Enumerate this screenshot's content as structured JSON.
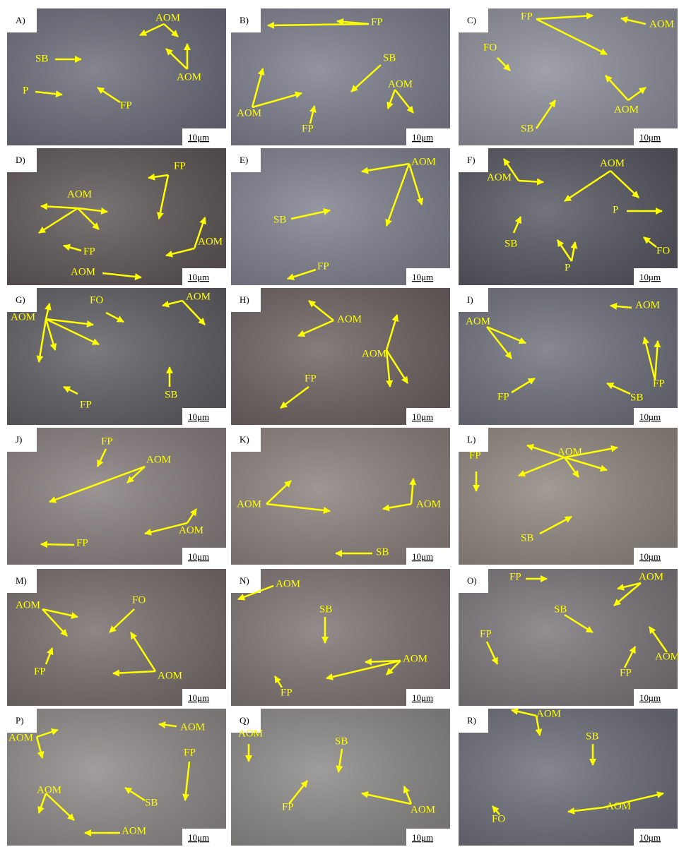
{
  "panels": [
    {
      "label": "A)",
      "annotations": [
        "AOM",
        "SB",
        "P",
        "FP",
        "AOM"
      ],
      "scale": "10μm"
    },
    {
      "label": "B)",
      "annotations": [
        "FP",
        "SB",
        "AOM",
        "FP",
        "AOM"
      ],
      "scale": "10μm"
    },
    {
      "label": "C)",
      "annotations": [
        "FP",
        "AOM",
        "FO",
        "AOM",
        "SB"
      ],
      "scale": "10μm"
    },
    {
      "label": "D)",
      "annotations": [
        "FP",
        "AOM",
        "FP",
        "AOM",
        "AOM"
      ],
      "scale": "10μm"
    },
    {
      "label": "E)",
      "annotations": [
        "AOM",
        "SB",
        "FP"
      ],
      "scale": "10μm"
    },
    {
      "label": "F)",
      "annotations": [
        "AOM",
        "AOM",
        "P",
        "SB",
        "P",
        "FO"
      ],
      "scale": "10μm"
    },
    {
      "label": "G)",
      "annotations": [
        "AOM",
        "FO",
        "AOM",
        "SB",
        "FP"
      ],
      "scale": "10μm"
    },
    {
      "label": "H)",
      "annotations": [
        "AOM",
        "AOM",
        "FP"
      ],
      "scale": "10μm"
    },
    {
      "label": "I)",
      "annotations": [
        "AOM",
        "AOM",
        "FP",
        "SB",
        "FP"
      ],
      "scale": "10μm"
    },
    {
      "label": "J)",
      "annotations": [
        "FP",
        "AOM",
        "AOM",
        "FP"
      ],
      "scale": "10μm"
    },
    {
      "label": "K)",
      "annotations": [
        "AOM",
        "AOM",
        "SB"
      ],
      "scale": "10μm"
    },
    {
      "label": "L)",
      "annotations": [
        "FP",
        "AOM",
        "SB"
      ],
      "scale": "10μm"
    },
    {
      "label": "M)",
      "annotations": [
        "AOM",
        "FO",
        "FP",
        "AOM"
      ],
      "scale": "10μm"
    },
    {
      "label": "N)",
      "annotations": [
        "AOM",
        "SB",
        "AOM",
        "FP"
      ],
      "scale": "10μm"
    },
    {
      "label": "O)",
      "annotations": [
        "FP",
        "AOM",
        "SB",
        "FP",
        "FP",
        "AOM"
      ],
      "scale": "10μm"
    },
    {
      "label": "P)",
      "annotations": [
        "AOM",
        "AOM",
        "FP",
        "AOM",
        "SB",
        "AOM"
      ],
      "scale": "10μm"
    },
    {
      "label": "Q)",
      "annotations": [
        "AOM",
        "SB",
        "FP",
        "AOM"
      ],
      "scale": "10μm"
    },
    {
      "label": "R)",
      "annotations": [
        "AOM",
        "SB",
        "FO",
        "AOM"
      ],
      "scale": "10μm"
    }
  ]
}
